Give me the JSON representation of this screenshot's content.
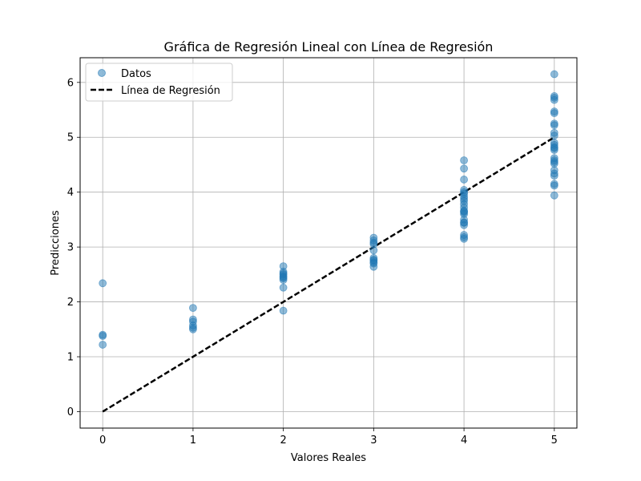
{
  "chart_data": {
    "type": "scatter",
    "title": "Gráfica de Regresión Lineal con Línea de Regresión",
    "xlabel": "Valores Reales",
    "ylabel": "Predicciones",
    "xlim": [
      -0.25,
      5.25
    ],
    "ylim": [
      -0.3,
      6.45
    ],
    "xticks": [
      0,
      1,
      2,
      3,
      4,
      5
    ],
    "yticks": [
      0,
      1,
      2,
      3,
      4,
      5,
      6
    ],
    "grid": true,
    "legend": {
      "placement": "top-left",
      "entries": [
        "Datos",
        "Línea de Regresión"
      ]
    },
    "series": [
      {
        "name": "Datos",
        "kind": "scatter",
        "color": "#1f77b4",
        "x": [
          0,
          0,
          0,
          0,
          1,
          1,
          1,
          1,
          1,
          1,
          2,
          2,
          2,
          2,
          2,
          2,
          2,
          2,
          2,
          2,
          3,
          3,
          3,
          3,
          3,
          3,
          3,
          3,
          3,
          3,
          3,
          4,
          4,
          4,
          4,
          4,
          4,
          4,
          4,
          4,
          4,
          4,
          4,
          4,
          4,
          4,
          4,
          4,
          4,
          4,
          4,
          4,
          4,
          5,
          5,
          5,
          5,
          5,
          5,
          5,
          5,
          5,
          5,
          5,
          5,
          5,
          5,
          5,
          5,
          5,
          5,
          5,
          5,
          5,
          5,
          5,
          5,
          5
        ],
        "y": [
          2.34,
          1.4,
          1.38,
          1.22,
          1.89,
          1.68,
          1.64,
          1.57,
          1.53,
          1.5,
          2.65,
          2.55,
          2.52,
          2.5,
          2.47,
          2.45,
          2.43,
          2.4,
          2.26,
          1.84,
          3.17,
          3.12,
          3.08,
          3.05,
          2.94,
          2.8,
          2.77,
          2.75,
          2.72,
          2.7,
          2.64,
          4.58,
          4.43,
          4.23,
          4.04,
          4.0,
          3.97,
          3.92,
          3.88,
          3.84,
          3.78,
          3.72,
          3.66,
          3.63,
          3.6,
          3.5,
          3.44,
          3.4,
          3.22,
          3.18,
          3.15,
          3.45,
          3.65,
          6.15,
          5.75,
          5.72,
          5.68,
          5.47,
          5.44,
          5.25,
          5.22,
          5.08,
          5.03,
          4.9,
          4.86,
          4.82,
          4.77,
          4.62,
          4.58,
          4.55,
          4.52,
          4.4,
          4.34,
          4.3,
          4.15,
          4.12,
          3.94,
          4.8
        ]
      },
      {
        "name": "Línea de Regresión",
        "kind": "line",
        "color": "#000000",
        "dash": "dashed",
        "x": [
          0,
          5
        ],
        "y": [
          0,
          5
        ]
      }
    ]
  }
}
